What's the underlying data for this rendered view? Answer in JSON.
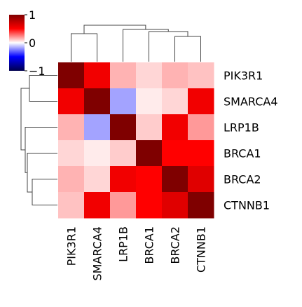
{
  "chart_data": {
    "type": "heatmap",
    "title": "",
    "rows": [
      "PIK3R1",
      "SMARCA4",
      "LRP1B",
      "BRCA1",
      "BRCA2",
      "CTNNB1"
    ],
    "columns": [
      "PIK3R1",
      "SMARCA4",
      "LRP1B",
      "BRCA1",
      "BRCA2",
      "CTNNB1"
    ],
    "values": [
      [
        1.0,
        0.55,
        0.15,
        0.08,
        0.15,
        0.12
      ],
      [
        0.55,
        1.0,
        -0.18,
        0.04,
        0.08,
        0.55
      ],
      [
        0.15,
        -0.18,
        1.0,
        0.1,
        0.55,
        0.2
      ],
      [
        0.08,
        0.04,
        0.1,
        1.0,
        0.5,
        0.5
      ],
      [
        0.15,
        0.08,
        0.55,
        0.5,
        1.0,
        0.62
      ],
      [
        0.12,
        0.55,
        0.2,
        0.5,
        0.62,
        1.0
      ]
    ],
    "colorbar": {
      "colormap": "seismic",
      "range": [
        -1,
        1
      ],
      "ticks": [
        -1,
        0,
        1
      ],
      "tick_labels": [
        "−1",
        "0",
        "1"
      ]
    },
    "row_dendrogram": true,
    "column_dendrogram": true
  }
}
